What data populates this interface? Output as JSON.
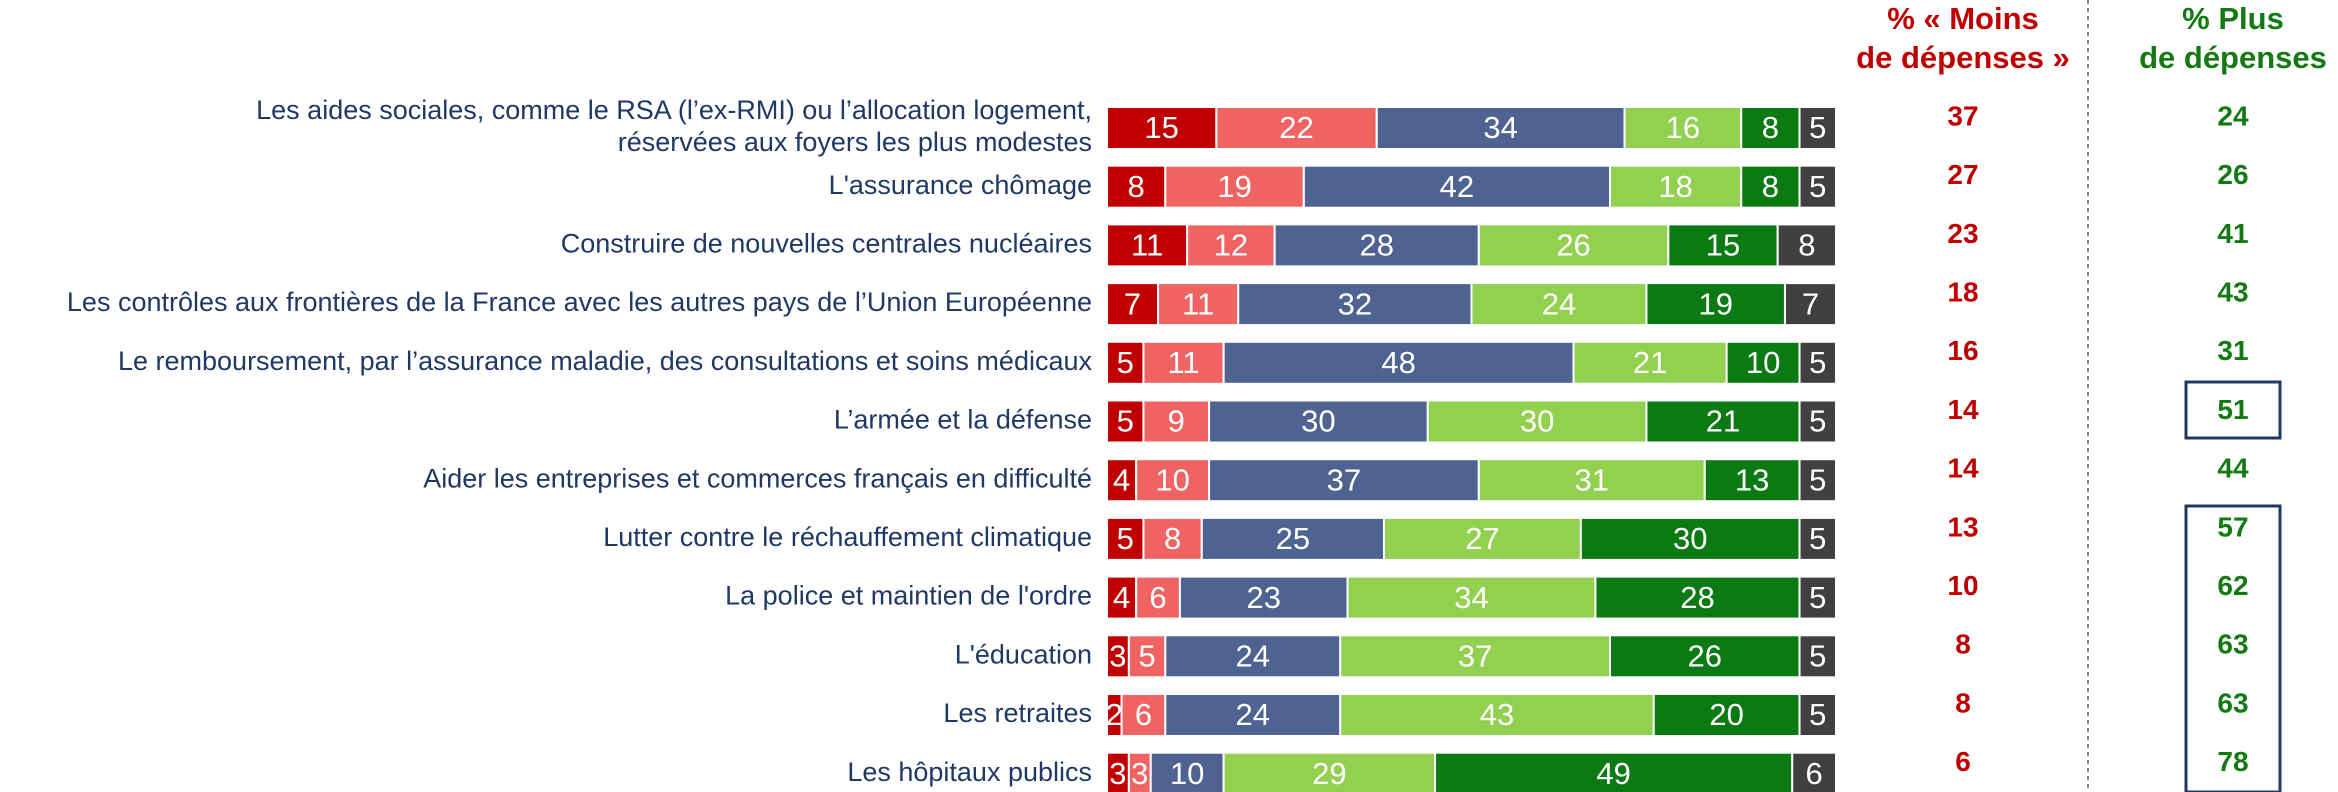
{
  "chart_data": {
    "type": "stacked_bar",
    "categories": [
      [
        "Les aides sociales, comme le RSA (l’ex-RMI) ou l’allocation logement,",
        "réservées aux foyers les plus modestes"
      ],
      "L'assurance chômage",
      "Construire de nouvelles centrales nucléaires",
      "Les contrôles aux frontières de la France avec les autres pays de l’Union Européenne",
      "Le remboursement, par l’assurance maladie, des consultations et soins médicaux",
      "L’armée et la défense",
      "Aider les entreprises et commerces français en difficulté",
      "Lutter contre le réchauffement climatique",
      "La police et maintien de l'ordre",
      "L'éducation",
      "Les retraites",
      "Les hôpitaux publics"
    ],
    "series": [
      {
        "color": "#c00000",
        "values": [
          15,
          8,
          11,
          7,
          5,
          5,
          4,
          5,
          4,
          3,
          2,
          3
        ]
      },
      {
        "color": "#f06363",
        "values": [
          22,
          19,
          12,
          11,
          11,
          9,
          10,
          8,
          6,
          5,
          6,
          3
        ]
      },
      {
        "color": "#4e6391",
        "values": [
          34,
          42,
          28,
          32,
          48,
          30,
          37,
          25,
          23,
          24,
          24,
          10
        ]
      },
      {
        "color": "#92d050",
        "values": [
          16,
          18,
          26,
          24,
          21,
          30,
          31,
          27,
          34,
          37,
          43,
          29
        ]
      },
      {
        "color": "#0b7a12",
        "values": [
          8,
          8,
          15,
          19,
          10,
          21,
          13,
          30,
          28,
          26,
          20,
          49
        ]
      },
      {
        "color": "#404040",
        "values": [
          5,
          5,
          8,
          7,
          5,
          5,
          5,
          5,
          5,
          5,
          5,
          6
        ]
      }
    ],
    "columns": [
      {
        "header": [
          "% « Moins",
          "de dépenses »"
        ],
        "color": "#c00000",
        "values": [
          37,
          27,
          23,
          18,
          16,
          14,
          14,
          13,
          10,
          8,
          8,
          6
        ]
      },
      {
        "header": [
          "% Plus",
          "de dépenses"
        ],
        "color": "#137a13",
        "values": [
          24,
          26,
          41,
          43,
          31,
          51,
          44,
          57,
          62,
          63,
          63,
          78
        ]
      }
    ]
  }
}
